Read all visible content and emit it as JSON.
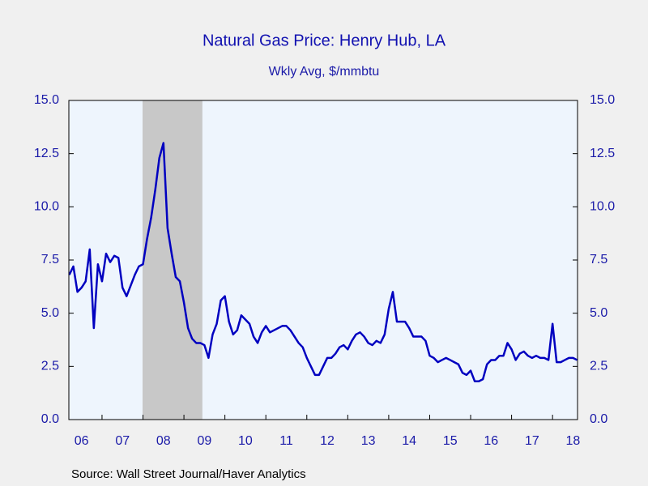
{
  "chart_data": {
    "type": "line",
    "title": "Natural Gas Price: Henry Hub, LA",
    "subtitle": "Wkly Avg, $/mmbtu",
    "source": "Source:  Wall Street Journal/Haver Analytics",
    "color": "#0000c0",
    "x": [
      2006.2,
      2006.3,
      2006.4,
      2006.5,
      2006.6,
      2006.7,
      2006.8,
      2006.9,
      2007.0,
      2007.1,
      2007.2,
      2007.3,
      2007.4,
      2007.5,
      2007.6,
      2007.7,
      2007.8,
      2007.9,
      2008.0,
      2008.1,
      2008.2,
      2008.3,
      2008.4,
      2008.5,
      2008.6,
      2008.7,
      2008.8,
      2008.9,
      2009.0,
      2009.1,
      2009.2,
      2009.3,
      2009.4,
      2009.5,
      2009.6,
      2009.7,
      2009.8,
      2009.9,
      2010.0,
      2010.1,
      2010.2,
      2010.3,
      2010.4,
      2010.5,
      2010.6,
      2010.7,
      2010.8,
      2010.9,
      2011.0,
      2011.1,
      2011.2,
      2011.3,
      2011.4,
      2011.5,
      2011.6,
      2011.7,
      2011.8,
      2011.9,
      2012.0,
      2012.1,
      2012.2,
      2012.3,
      2012.4,
      2012.5,
      2012.6,
      2012.7,
      2012.8,
      2012.9,
      2013.0,
      2013.1,
      2013.2,
      2013.3,
      2013.4,
      2013.5,
      2013.6,
      2013.7,
      2013.8,
      2013.9,
      2014.0,
      2014.1,
      2014.2,
      2014.3,
      2014.4,
      2014.5,
      2014.6,
      2014.7,
      2014.8,
      2014.9,
      2015.0,
      2015.1,
      2015.2,
      2015.3,
      2015.4,
      2015.5,
      2015.6,
      2015.7,
      2015.8,
      2015.9,
      2016.0,
      2016.1,
      2016.2,
      2016.3,
      2016.4,
      2016.5,
      2016.6,
      2016.7,
      2016.8,
      2016.9,
      2017.0,
      2017.1,
      2017.2,
      2017.3,
      2017.4,
      2017.5,
      2017.6,
      2017.7,
      2017.8,
      2017.9,
      2018.0,
      2018.1,
      2018.2,
      2018.3,
      2018.4,
      2018.5,
      2018.6
    ],
    "values": [
      6.8,
      7.2,
      6.0,
      6.2,
      6.5,
      8.0,
      4.3,
      7.3,
      6.5,
      7.8,
      7.4,
      7.7,
      7.6,
      6.2,
      5.8,
      6.3,
      6.8,
      7.2,
      7.3,
      8.5,
      9.5,
      10.8,
      12.3,
      13.0,
      9.0,
      7.8,
      6.7,
      6.5,
      5.5,
      4.3,
      3.8,
      3.6,
      3.6,
      3.5,
      2.9,
      4.0,
      4.5,
      5.6,
      5.8,
      4.6,
      4.0,
      4.2,
      4.9,
      4.7,
      4.5,
      3.9,
      3.6,
      4.1,
      4.4,
      4.1,
      4.2,
      4.3,
      4.4,
      4.4,
      4.2,
      3.9,
      3.6,
      3.4,
      2.9,
      2.5,
      2.1,
      2.1,
      2.5,
      2.9,
      2.9,
      3.1,
      3.4,
      3.5,
      3.3,
      3.7,
      4.0,
      4.1,
      3.9,
      3.6,
      3.5,
      3.7,
      3.6,
      4.0,
      5.2,
      6.0,
      4.6,
      4.6,
      4.6,
      4.3,
      3.9,
      3.9,
      3.9,
      3.7,
      3.0,
      2.9,
      2.7,
      2.8,
      2.9,
      2.8,
      2.7,
      2.6,
      2.2,
      2.1,
      2.3,
      1.8,
      1.8,
      1.9,
      2.6,
      2.8,
      2.8,
      3.0,
      3.0,
      3.6,
      3.3,
      2.8,
      3.1,
      3.2,
      3.0,
      2.9,
      3.0,
      2.9,
      2.9,
      2.8,
      4.5,
      2.7,
      2.7,
      2.8,
      2.9,
      2.9,
      2.8
    ],
    "xlim": [
      2006.19,
      2018.61
    ],
    "xticks": [
      {
        "value": 2006.5,
        "label": "06"
      },
      {
        "value": 2007.5,
        "label": "07"
      },
      {
        "value": 2008.5,
        "label": "08"
      },
      {
        "value": 2009.5,
        "label": "09"
      },
      {
        "value": 2010.5,
        "label": "10"
      },
      {
        "value": 2011.5,
        "label": "11"
      },
      {
        "value": 2012.5,
        "label": "12"
      },
      {
        "value": 2013.5,
        "label": "13"
      },
      {
        "value": 2014.5,
        "label": "14"
      },
      {
        "value": 2015.5,
        "label": "15"
      },
      {
        "value": 2016.5,
        "label": "16"
      },
      {
        "value": 2017.5,
        "label": "17"
      },
      {
        "value": 2018.5,
        "label": "18"
      }
    ],
    "xtick_marks": [
      2007,
      2008,
      2009,
      2010,
      2011,
      2012,
      2013,
      2014,
      2015,
      2016,
      2017,
      2018
    ],
    "ylim": [
      0,
      15
    ],
    "yticks": [
      {
        "value": 0,
        "label": "0.0"
      },
      {
        "value": 2.5,
        "label": "2.5"
      },
      {
        "value": 5,
        "label": "5.0"
      },
      {
        "value": 7.5,
        "label": "7.5"
      },
      {
        "value": 10,
        "label": "10.0"
      },
      {
        "value": 12.5,
        "label": "12.5"
      },
      {
        "value": 15,
        "label": "15.0"
      }
    ],
    "y2lim": [
      0,
      15
    ],
    "y2ticks": [
      {
        "value": 0,
        "label": "0.0"
      },
      {
        "value": 2.5,
        "label": "2.5"
      },
      {
        "value": 5,
        "label": "5.0"
      },
      {
        "value": 7.5,
        "label": "7.5"
      },
      {
        "value": 10,
        "label": "10.0"
      },
      {
        "value": 12.5,
        "label": "12.5"
      },
      {
        "value": 15,
        "label": "15.0"
      }
    ],
    "shading": [
      {
        "start": 2007.99,
        "end": 2009.45,
        "color": "#c8c8c8"
      }
    ]
  }
}
